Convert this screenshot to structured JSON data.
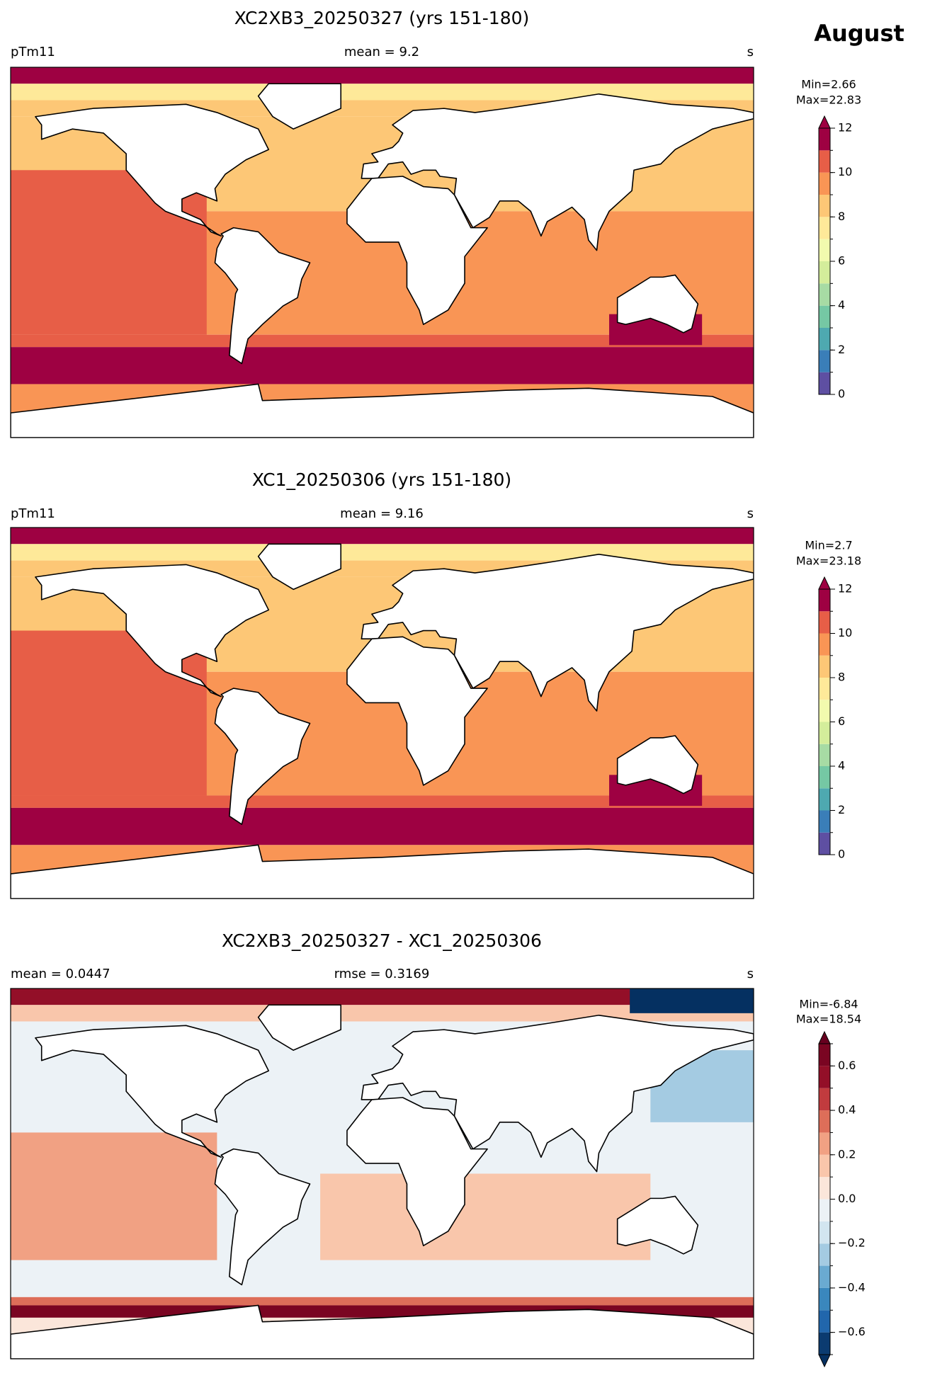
{
  "title": "August",
  "panels": [
    {
      "title": "XC2XB3_20250327 (yrs 151-180)",
      "left_label": "pTm11",
      "center_label": "mean = 9.2",
      "right_label": "s",
      "min_label": "Min=2.66",
      "max_label": "Max=22.83",
      "colorbar": {
        "levels": [
          0,
          1,
          2,
          3,
          4,
          5,
          6,
          7,
          8,
          9,
          10,
          11,
          12
        ],
        "ticks": [
          0,
          2,
          4,
          6,
          8,
          10,
          12
        ],
        "colors": [
          "#5e4fa2",
          "#3a7eb8",
          "#4ea9b0",
          "#75c8a4",
          "#a7dba4",
          "#d4ed9b",
          "#f2faae",
          "#fee999",
          "#fdc776",
          "#f99555",
          "#e75e47",
          "#9e0142"
        ],
        "extend": "max",
        "over_color": "#9e0142"
      }
    },
    {
      "title": "XC1_20250306 (yrs 151-180)",
      "left_label": "pTm11",
      "center_label": "mean = 9.16",
      "right_label": "s",
      "min_label": "Min=2.7",
      "max_label": "Max=23.18",
      "colorbar": {
        "levels": [
          0,
          1,
          2,
          3,
          4,
          5,
          6,
          7,
          8,
          9,
          10,
          11,
          12
        ],
        "ticks": [
          0,
          2,
          4,
          6,
          8,
          10,
          12
        ],
        "colors": [
          "#5e4fa2",
          "#3a7eb8",
          "#4ea9b0",
          "#75c8a4",
          "#a7dba4",
          "#d4ed9b",
          "#f2faae",
          "#fee999",
          "#fdc776",
          "#f99555",
          "#e75e47",
          "#9e0142"
        ],
        "extend": "max",
        "over_color": "#9e0142"
      }
    },
    {
      "title": "XC2XB3_20250327 - XC1_20250306",
      "left_label": "mean = 0.0447",
      "center_label": "rmse = 0.3169",
      "right_label": "s",
      "min_label": "Min=-6.84",
      "max_label": "Max=18.54",
      "colorbar": {
        "levels": [
          -0.7,
          -0.6,
          -0.5,
          -0.4,
          -0.3,
          -0.2,
          -0.1,
          0,
          0.1,
          0.2,
          0.3,
          0.4,
          0.5,
          0.6,
          0.7
        ],
        "ticks": [
          {
            "value": -0.6,
            "label": "−0.6"
          },
          {
            "value": -0.4,
            "label": "−0.4"
          },
          {
            "value": -0.2,
            "label": "−0.2"
          },
          {
            "value": 0,
            "label": "0.0"
          },
          0.2,
          0.4,
          0.6
        ],
        "colors": [
          "#0b3b70",
          "#2166ac",
          "#3a87bd",
          "#6aaad1",
          "#a4cbe2",
          "#d2e5f0",
          "#ecf2f6",
          "#fbe6da",
          "#f9c6ab",
          "#f1a183",
          "#dd6e59",
          "#c13b3e",
          "#930f28",
          "#7a0522"
        ],
        "extend": "both",
        "over_color": "#67001f",
        "under_color": "#053061"
      }
    }
  ]
}
